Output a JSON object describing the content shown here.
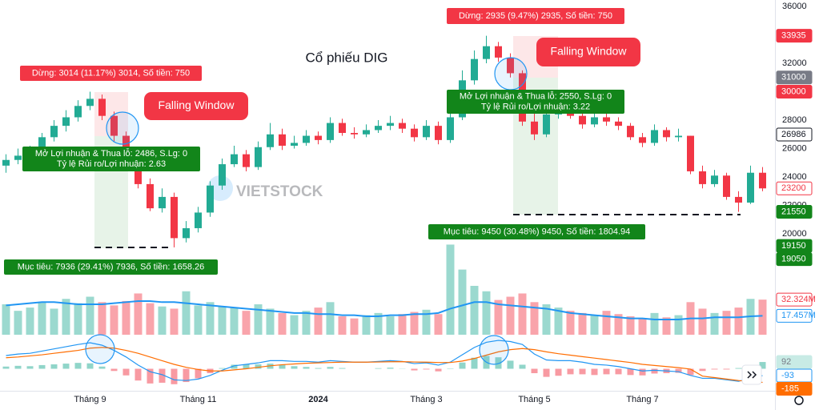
{
  "chart_data": {
    "type": "candlestick",
    "title": "Cổ phiếu DIG",
    "watermark": "VIETSTOCK",
    "categories": [
      null,
      null,
      null,
      null,
      null,
      null,
      null,
      "Tháng 9",
      null,
      null,
      null,
      null,
      null,
      null,
      null,
      null,
      "Tháng 11",
      null,
      null,
      null,
      null,
      null,
      null,
      null,
      null,
      null,
      "2024",
      null,
      null,
      null,
      null,
      null,
      null,
      null,
      null,
      "Tháng 3",
      null,
      null,
      null,
      null,
      null,
      null,
      null,
      null,
      "Tháng 5",
      null,
      null,
      null,
      null,
      null,
      null,
      null,
      null,
      "Tháng 7",
      null,
      null,
      null,
      null,
      null,
      null,
      null,
      null,
      null,
      null
    ],
    "open": [
      24800,
      25200,
      25500,
      25700,
      26800,
      27600,
      28200,
      29000,
      29500,
      28300,
      26900,
      24800,
      23500,
      21800,
      22600,
      19700,
      20400,
      21500,
      23400,
      24900,
      25600,
      24700,
      26100,
      27000,
      26200,
      26400,
      26900,
      26600,
      27800,
      27100,
      27000,
      27300,
      27600,
      27800,
      27400,
      26800,
      27600,
      26600,
      28200,
      30800,
      32300,
      33200,
      32400,
      31300,
      27900,
      27000,
      28400,
      28700,
      28300,
      27700,
      28200,
      27900,
      27600,
      26800,
      26400,
      27300,
      26800,
      26900,
      24400,
      23500,
      24100,
      22600,
      22200,
      24300
    ],
    "high": [
      25600,
      26000,
      26200,
      27100,
      28000,
      28700,
      29400,
      30000,
      29800,
      28600,
      27200,
      25300,
      23900,
      23200,
      22900,
      20900,
      21900,
      23700,
      25300,
      26200,
      25900,
      26500,
      27800,
      27400,
      26900,
      27300,
      27200,
      28200,
      28100,
      27500,
      27700,
      28000,
      28300,
      28100,
      27700,
      28000,
      27900,
      28700,
      31500,
      32900,
      33935,
      33500,
      32700,
      31500,
      28500,
      28900,
      29100,
      29000,
      28500,
      28500,
      28600,
      28200,
      27800,
      27100,
      27700,
      27500,
      27400,
      26900,
      24800,
      24500,
      24300,
      23000,
      24800,
      24700
    ],
    "low": [
      24300,
      24900,
      25100,
      25400,
      26500,
      27200,
      27900,
      28700,
      28000,
      26500,
      24500,
      23200,
      21600,
      21500,
      19050,
      19400,
      20100,
      21200,
      23100,
      24700,
      24400,
      24500,
      25900,
      25900,
      26000,
      26200,
      26300,
      26400,
      26900,
      26700,
      26800,
      27100,
      27300,
      27100,
      26500,
      26600,
      26300,
      26400,
      28000,
      30500,
      32000,
      32100,
      31000,
      27600,
      26600,
      26800,
      28100,
      28100,
      27400,
      27500,
      27600,
      27300,
      26600,
      26100,
      26200,
      26500,
      26500,
      24200,
      23200,
      23300,
      22400,
      21550,
      22100,
      23000
    ],
    "close": [
      25200,
      25500,
      25700,
      26800,
      27600,
      28200,
      29000,
      29500,
      28300,
      26900,
      24800,
      23500,
      21800,
      22600,
      19700,
      20400,
      21500,
      23400,
      24900,
      25600,
      24700,
      26100,
      27000,
      26200,
      26400,
      26900,
      26600,
      27800,
      27100,
      27000,
      27300,
      27600,
      27800,
      27400,
      26800,
      27600,
      26600,
      28200,
      30800,
      32300,
      33200,
      32400,
      31300,
      27900,
      27000,
      28400,
      28700,
      28300,
      27700,
      28200,
      27900,
      27600,
      26800,
      26400,
      27300,
      26800,
      26900,
      24400,
      23500,
      24100,
      22600,
      22200,
      24300,
      23200
    ],
    "up_color": "#22ab94",
    "down_color": "#f23645",
    "ylim": [
      17300,
      36450
    ],
    "yticks": [
      20000,
      22000,
      24000,
      26000,
      28000,
      30000,
      32000,
      34000,
      36000
    ],
    "price_tags": [
      {
        "value": 33935,
        "background": "#f23645",
        "text_color": "#ffffff",
        "border": "#f23645"
      },
      {
        "value": 31000,
        "background": "#787b86",
        "text_color": "#ffffff",
        "border": "#787b86"
      },
      {
        "value": 30000,
        "background": "#f23645",
        "text_color": "#ffffff",
        "border": "#f23645"
      },
      {
        "value": 26986,
        "background": "#ffffff",
        "text_color": "#131722",
        "border": "#131722"
      },
      {
        "value": 23200,
        "background": "#ffffff",
        "text_color": "#f23645",
        "border": "#f23645"
      },
      {
        "value": 21550,
        "background": "#12851a",
        "text_color": "#ffffff",
        "border": "#12851a"
      },
      {
        "value": 19150,
        "background": "#12851a",
        "text_color": "#ffffff",
        "border": "#12851a"
      },
      {
        "value": 19050,
        "background": "#12851a",
        "text_color": "#ffffff",
        "border": "#12851a"
      }
    ],
    "volume": {
      "values": [
        28,
        22,
        25,
        30,
        24,
        33,
        29,
        35,
        30,
        27,
        31,
        38,
        29,
        26,
        24,
        40,
        27,
        30,
        26,
        25,
        22,
        28,
        24,
        20,
        18,
        22,
        25,
        30,
        17,
        15,
        18,
        20,
        17,
        19,
        21,
        23,
        19,
        83,
        60,
        45,
        40,
        32,
        35,
        38,
        30,
        28,
        25,
        22,
        20,
        18,
        22,
        19,
        17,
        15,
        20,
        16,
        18,
        30,
        24,
        20,
        22,
        25,
        33,
        32.324
      ],
      "ma": [
        27,
        28,
        29,
        30,
        30,
        29,
        28,
        28,
        28,
        29,
        30,
        31,
        31,
        30,
        30,
        29,
        28,
        27,
        26,
        25,
        24,
        23,
        22,
        21,
        20,
        20,
        19,
        19,
        18,
        18,
        17,
        17,
        18,
        18,
        19,
        19,
        20,
        24,
        27,
        30,
        30,
        28,
        27,
        26,
        25,
        24,
        22,
        20,
        19,
        18,
        17,
        16,
        15,
        15,
        14,
        14,
        14,
        15,
        15,
        16,
        16,
        16,
        17,
        17.457
      ],
      "ma_color": "#2196f3",
      "ylim": [
        0,
        87
      ],
      "tags": [
        {
          "value": 32.324,
          "label": "32.324M",
          "background": "#ffffff",
          "text_color": "#f23645",
          "border": "#f23645"
        },
        {
          "value": 17.457,
          "label": "17.457M",
          "background": "#ffffff",
          "text_color": "#2196f3",
          "border": "#2196f3"
        }
      ]
    },
    "macd": {
      "macd": [
        180,
        200,
        210,
        240,
        270,
        300,
        330,
        354,
        320,
        250,
        160,
        50,
        -40,
        -80,
        -150,
        -160,
        -140,
        -90,
        -20,
        40,
        60,
        80,
        110,
        110,
        100,
        100,
        90,
        110,
        100,
        90,
        90,
        100,
        110,
        100,
        70,
        80,
        50,
        90,
        190,
        290,
        360,
        386,
        370,
        330,
        200,
        120,
        110,
        110,
        90,
        60,
        50,
        30,
        0,
        -30,
        -20,
        -30,
        -40,
        -90,
        -130,
        -130,
        -150,
        -170,
        -130,
        -93
      ],
      "signal": [
        150,
        160,
        175,
        190,
        210,
        230,
        250,
        280,
        290,
        280,
        250,
        210,
        160,
        110,
        60,
        20,
        -10,
        -30,
        -30,
        -15,
        0,
        20,
        40,
        55,
        65,
        75,
        80,
        85,
        90,
        90,
        90,
        92,
        95,
        97,
        92,
        90,
        85,
        85,
        105,
        140,
        185,
        230,
        260,
        275,
        260,
        230,
        205,
        185,
        165,
        145,
        125,
        105,
        85,
        60,
        45,
        30,
        15,
        -5,
        -100,
        -120,
        -140,
        -160,
        -175,
        -185
      ],
      "histogram": [
        30,
        40,
        35,
        50,
        60,
        70,
        80,
        74,
        30,
        -30,
        -90,
        -160,
        -200,
        -190,
        -210,
        -180,
        -130,
        -60,
        10,
        55,
        60,
        60,
        70,
        55,
        35,
        25,
        10,
        25,
        10,
        0,
        0,
        8,
        15,
        3,
        -22,
        -10,
        -35,
        5,
        85,
        150,
        175,
        156,
        110,
        55,
        -60,
        -110,
        -95,
        -75,
        -75,
        -85,
        -75,
        -75,
        -85,
        -90,
        -65,
        -60,
        -55,
        -85,
        -30,
        -10,
        -10,
        10,
        45,
        92
      ],
      "macd_color": "#2196f3",
      "signal_color": "#ff6d00",
      "ylim": [
        -321,
        430
      ],
      "tags": [
        {
          "value": 92,
          "background": "#c8ebe5",
          "text_color": "#787b86",
          "border": "#c8ebe5"
        },
        {
          "value": -93,
          "background": "#ffffff",
          "text_color": "#2196f3",
          "border": "#2196f3"
        },
        {
          "value": -185,
          "background": "#ff6d00",
          "text_color": "#ffffff",
          "border": "#ff6d00"
        }
      ]
    },
    "annotations": [
      {
        "lines": [
          "Dừng: 3014 (11.17%) 3014, Số tiền: 750"
        ],
        "color": "#f23645"
      },
      {
        "lines": [
          "Mở Lợi nhuận & Thua lỗ: 2486, S.Lg: 0",
          "Tỷ lệ Rủi ro/Lợi nhuận: 2.63"
        ],
        "color": "#12851a"
      },
      {
        "lines": [
          "Mục tiêu: 7936 (29.41%) 7936, Số tiền: 1658.26"
        ],
        "color": "#12851a"
      },
      {
        "lines": [
          "Falling Window"
        ],
        "color": "#f23645"
      },
      {
        "lines": [
          "Dừng: 2935 (9.47%) 2935, Số tiền: 750"
        ],
        "color": "#f23645"
      },
      {
        "lines": [
          "Falling Window"
        ],
        "color": "#f23645"
      },
      {
        "lines": [
          "Mở Lợi nhuận & Thua lỗ: 2550, S.Lg: 0",
          "Tỷ lệ Rủi ro/Lợi nhuận: 3.22"
        ],
        "color": "#12851a"
      },
      {
        "lines": [
          "Mục tiêu: 9450 (30.48%) 9450, Số tiền: 1804.94"
        ],
        "color": "#12851a"
      }
    ]
  }
}
